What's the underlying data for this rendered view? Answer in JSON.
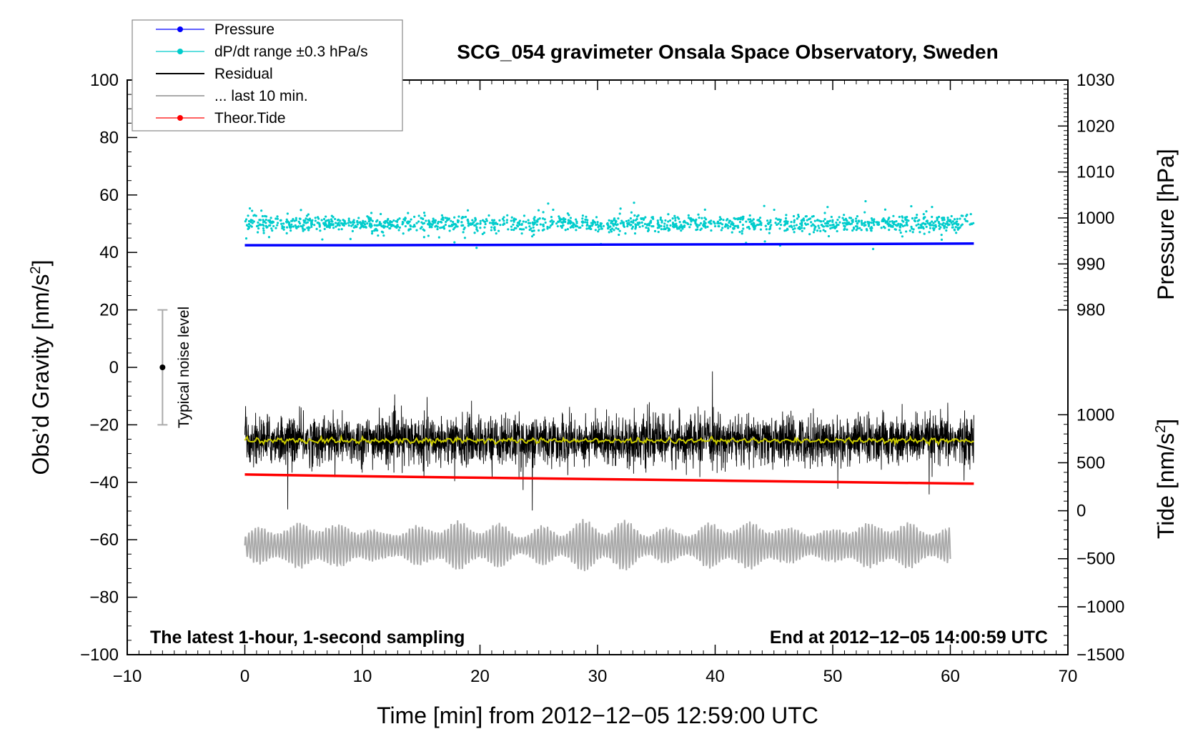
{
  "chart_data": {
    "type": "line",
    "title": "SCG_054 gravimeter Onsala Space Observatory, Sweden",
    "xlabel": "Time [min] from 2012−12−05 12:59:00 UTC",
    "ylabel_left": "Obs’d Gravity [nm/s",
    "ylabel_left_sup": "2",
    "ylabel_left_close": "]",
    "ylabel_right_top": "Pressure [hPa]",
    "ylabel_right_bottom": "Tide [nm/s",
    "ylabel_right_bottom_sup": "2",
    "ylabel_right_bottom_close": "]",
    "xlim": [
      -10,
      70
    ],
    "ylim_left": [
      -100,
      100
    ],
    "ylim_pressure": [
      980,
      1030
    ],
    "ylim_tide": [
      -1500,
      1000
    ],
    "x_ticks": [
      "−10",
      "0",
      "10",
      "20",
      "30",
      "40",
      "50",
      "60",
      "70"
    ],
    "x_tick_values": [
      -10,
      0,
      10,
      20,
      30,
      40,
      50,
      60,
      70
    ],
    "y_left_ticks": [
      "100",
      "80",
      "60",
      "40",
      "20",
      "0",
      "−20",
      "−40",
      "−60",
      "−80",
      "−100"
    ],
    "y_left_tick_values": [
      100,
      80,
      60,
      40,
      20,
      0,
      -20,
      -40,
      -60,
      -80,
      -100
    ],
    "y_pressure_ticks": [
      "1030",
      "1020",
      "1010",
      "1000",
      "990",
      "980"
    ],
    "y_pressure_tick_values": [
      1030,
      1020,
      1010,
      1000,
      990,
      980
    ],
    "y_tide_ticks": [
      "1000",
      "500",
      "0",
      "−500",
      "−1000",
      "−1500"
    ],
    "y_tide_tick_values": [
      1000,
      500,
      0,
      -500,
      -1000,
      -1500
    ],
    "note_left": "The latest 1-hour, 1-second sampling",
    "note_right": "End at 2012−12−05 14:00:59 UTC",
    "noise_label": "Typical noise level",
    "noise_bar": {
      "x": -7,
      "center": 0,
      "half_range": 20
    },
    "legend": [
      {
        "label": "Pressure",
        "color": "#0000ff",
        "marker": true
      },
      {
        "label": "dP/dt range ±0.3 hPa/s",
        "color": "#00cccc",
        "marker": true
      },
      {
        "label": "Residual",
        "color": "#000000",
        "marker": false
      },
      {
        "label": "... last 10 min.",
        "color": "#aaaaaa",
        "marker": false
      },
      {
        "label": "Theor.Tide",
        "color": "#ff0000",
        "marker": true
      }
    ],
    "series": [
      {
        "name": "Pressure",
        "color": "#0000ff",
        "x": [
          0,
          10,
          20,
          30,
          40,
          50,
          62
        ],
        "y": [
          42.5,
          42.5,
          42.6,
          42.7,
          42.8,
          42.9,
          43.1
        ]
      },
      {
        "name": "dP/dt range ±0.3 hPa/s",
        "color": "#00cccc",
        "center": 50,
        "x_range": [
          0,
          62
        ]
      },
      {
        "name": "Residual",
        "color": "#000000",
        "center": -25.5,
        "x_range": [
          0,
          62
        ]
      },
      {
        "name": "... last 10 min.",
        "color": "#aaaaaa",
        "center": -62,
        "x_range": [
          0,
          60
        ]
      },
      {
        "name": "Theor.Tide",
        "color": "#ff0000",
        "x": [
          0,
          10,
          20,
          30,
          40,
          50,
          62
        ],
        "y": [
          -37.3,
          -37.9,
          -38.4,
          -38.9,
          -39.4,
          -39.9,
          -40.5
        ]
      }
    ],
    "grid": false,
    "legend_position": "top-left"
  }
}
